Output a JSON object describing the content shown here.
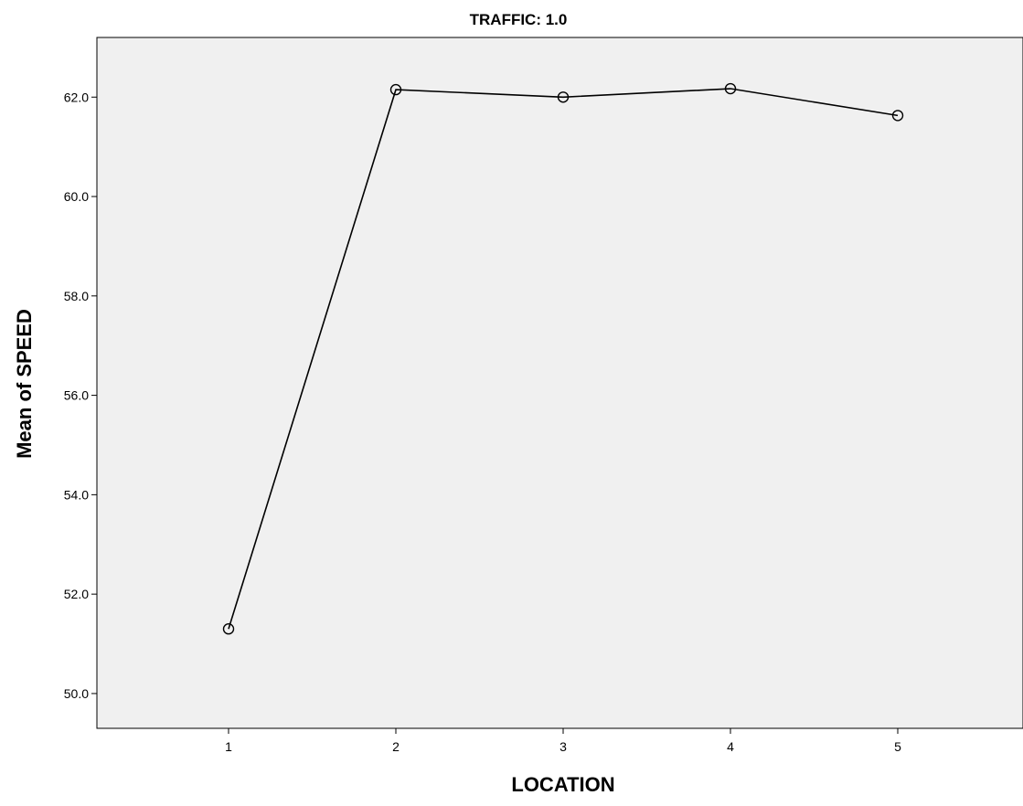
{
  "chart_data": {
    "type": "line",
    "title": "TRAFFIC: 1.0",
    "xlabel": "LOCATION",
    "ylabel": "Mean of SPEED",
    "categories": [
      "1",
      "2",
      "3",
      "4",
      "5"
    ],
    "series": [
      {
        "values": [
          51.3,
          62.15,
          62.0,
          62.17,
          61.63
        ]
      }
    ],
    "ylim": [
      49.3,
      63.2
    ],
    "yticks": [
      50.0,
      52.0,
      54.0,
      56.0,
      58.0,
      60.0,
      62.0
    ],
    "ytick_labels": [
      "50.0",
      "52.0",
      "54.0",
      "56.0",
      "58.0",
      "60.0",
      "62.0"
    ],
    "grid": false,
    "marker": "open-circle",
    "colors": {
      "plot_background": "#f0f0f0",
      "line": "#000000",
      "axis": "#000000"
    }
  }
}
